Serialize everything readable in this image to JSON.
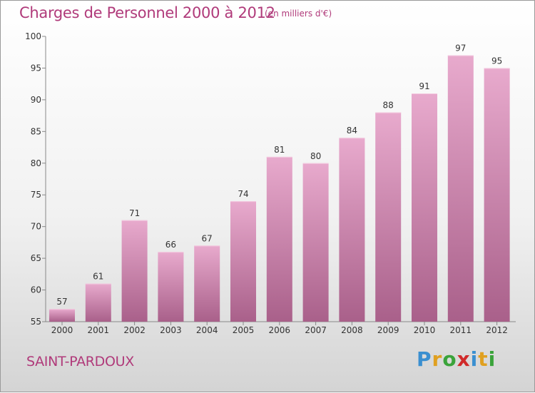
{
  "title": "Charges de Personnel 2000 à 2012",
  "subtitle": "(en milliers d'€)",
  "commune": "SAINT-PARDOUX",
  "logo": {
    "letters": [
      "P",
      "r",
      "o",
      "x",
      "i",
      "t",
      "i"
    ],
    "colors": [
      "#3a8fd0",
      "#e0a020",
      "#3aa33a",
      "#d02a2a",
      "#3a8fd0",
      "#e0a020",
      "#3aa33a"
    ]
  },
  "colors": {
    "bar_top": "#e8aacd",
    "bar_bottom": "#a9608a",
    "text": "#b03a7a"
  },
  "chart_data": {
    "type": "bar",
    "categories": [
      "2000",
      "2001",
      "2002",
      "2003",
      "2004",
      "2005",
      "2006",
      "2007",
      "2008",
      "2009",
      "2010",
      "2011",
      "2012"
    ],
    "values": [
      57,
      61,
      71,
      66,
      67,
      74,
      81,
      80,
      84,
      88,
      91,
      97,
      95
    ],
    "yticks": [
      55,
      60,
      65,
      70,
      75,
      80,
      85,
      90,
      95,
      100
    ],
    "ylim": [
      55,
      100
    ],
    "grid": false,
    "data_labels": true
  }
}
